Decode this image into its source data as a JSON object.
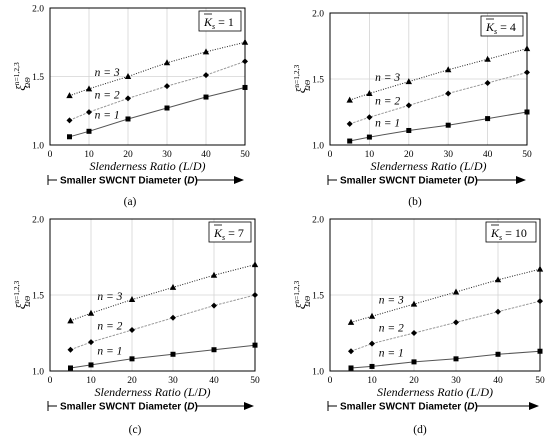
{
  "chart_data": [
    {
      "type": "line",
      "panel_label": "(a)",
      "k_label": {
        "symbol": "K",
        "sub": "s",
        "value": "1"
      },
      "y_symbol": {
        "base": "ξ",
        "sup": "n=1,2,3",
        "sub": "ΩΘ"
      },
      "xlabel": "Slenderness Ratio (L/D)",
      "xlabel_parts": {
        "text": "Slenderness Ratio (",
        "italic": "L",
        "sep": "/",
        "italic2": "D",
        "close": ")"
      },
      "arrow_label": "Smaller SWCNT Diameter (D)",
      "xlim": [
        0,
        50
      ],
      "ylim": [
        1.0,
        2.0
      ],
      "xticks": [
        "0",
        "10",
        "20",
        "30",
        "40",
        "50"
      ],
      "yticks": [
        "1.0",
        "1.5",
        "2.0"
      ],
      "x": [
        5,
        10,
        20,
        30,
        40,
        50
      ],
      "series": [
        {
          "name": "n = 1",
          "marker": "square",
          "values": [
            1.06,
            1.1,
            1.19,
            1.27,
            1.35,
            1.42
          ]
        },
        {
          "name": "n = 2",
          "marker": "diamond",
          "values": [
            1.18,
            1.24,
            1.34,
            1.43,
            1.51,
            1.61
          ]
        },
        {
          "name": "n = 3",
          "marker": "triangle",
          "values": [
            1.36,
            1.41,
            1.5,
            1.6,
            1.68,
            1.75
          ]
        }
      ]
    },
    {
      "type": "line",
      "panel_label": "(b)",
      "k_label": {
        "symbol": "K",
        "sub": "s",
        "value": "4"
      },
      "y_symbol": {
        "base": "ξ",
        "sup": "n=1,2,3",
        "sub": "ΩΘ"
      },
      "xlabel": "Slenderness Ratio (L/D)",
      "xlabel_parts": {
        "text": "Slenderness Ratio (",
        "italic": "L",
        "sep": "/",
        "italic2": "D",
        "close": ")"
      },
      "arrow_label": "Smaller SWCNT Diameter (D)",
      "xlim": [
        0,
        50
      ],
      "ylim": [
        1.0,
        2.0
      ],
      "xticks": [
        "0",
        "10",
        "20",
        "30",
        "40",
        "50"
      ],
      "yticks": [
        "1.0",
        "1.5",
        "2.0"
      ],
      "x": [
        5,
        10,
        20,
        30,
        40,
        50
      ],
      "series": [
        {
          "name": "n = 1",
          "marker": "square",
          "values": [
            1.03,
            1.06,
            1.11,
            1.15,
            1.2,
            1.25
          ]
        },
        {
          "name": "n = 2",
          "marker": "diamond",
          "values": [
            1.16,
            1.21,
            1.3,
            1.39,
            1.47,
            1.55
          ]
        },
        {
          "name": "n = 3",
          "marker": "triangle",
          "values": [
            1.34,
            1.39,
            1.48,
            1.57,
            1.65,
            1.73
          ]
        }
      ]
    },
    {
      "type": "line",
      "panel_label": "(c)",
      "k_label": {
        "symbol": "K",
        "sub": "s",
        "value": "7"
      },
      "y_symbol": {
        "base": "ξ",
        "sup": "n=1,2,3",
        "sub": "ΩΘ"
      },
      "xlabel": "Slenderness Ratio (L/D)",
      "xlabel_parts": {
        "text": "Slenderness Ratio (",
        "italic": "L",
        "sep": "/",
        "italic2": "D",
        "close": ")"
      },
      "arrow_label": "Smaller SWCNT Diameter (D)",
      "xlim": [
        0,
        50
      ],
      "ylim": [
        1.0,
        2.0
      ],
      "xticks": [
        "0",
        "10",
        "20",
        "30",
        "40",
        "50"
      ],
      "yticks": [
        "1.0",
        "1.5",
        "2.0"
      ],
      "x": [
        5,
        10,
        20,
        30,
        40,
        50
      ],
      "series": [
        {
          "name": "n = 1",
          "marker": "square",
          "values": [
            1.02,
            1.04,
            1.08,
            1.11,
            1.14,
            1.17
          ]
        },
        {
          "name": "n = 2",
          "marker": "diamond",
          "values": [
            1.14,
            1.19,
            1.27,
            1.35,
            1.43,
            1.5
          ]
        },
        {
          "name": "n = 3",
          "marker": "triangle",
          "values": [
            1.33,
            1.38,
            1.47,
            1.55,
            1.63,
            1.7
          ]
        }
      ]
    },
    {
      "type": "line",
      "panel_label": "(d)",
      "k_label": {
        "symbol": "K",
        "sub": "s",
        "value": "10"
      },
      "y_symbol": {
        "base": "ξ",
        "sup": "n=1,2,3",
        "sub": "ΩΘ"
      },
      "xlabel": "Slenderness Ratio (L/D)",
      "xlabel_parts": {
        "text": "Slenderness Ratio (",
        "italic": "L",
        "sep": "/",
        "italic2": "D",
        "close": ")"
      },
      "arrow_label": "Smaller SWCNT Diameter (D)",
      "xlim": [
        0,
        50
      ],
      "ylim": [
        1.0,
        2.0
      ],
      "xticks": [
        "0",
        "10",
        "20",
        "30",
        "40",
        "50"
      ],
      "yticks": [
        "1.0",
        "1.5",
        "2.0"
      ],
      "x": [
        5,
        10,
        20,
        30,
        40,
        50
      ],
      "series": [
        {
          "name": "n = 1",
          "marker": "square",
          "values": [
            1.02,
            1.03,
            1.06,
            1.08,
            1.11,
            1.13
          ]
        },
        {
          "name": "n = 2",
          "marker": "diamond",
          "values": [
            1.13,
            1.18,
            1.25,
            1.32,
            1.39,
            1.46
          ]
        },
        {
          "name": "n = 3",
          "marker": "triangle",
          "values": [
            1.32,
            1.36,
            1.44,
            1.52,
            1.6,
            1.67
          ]
        }
      ]
    }
  ]
}
